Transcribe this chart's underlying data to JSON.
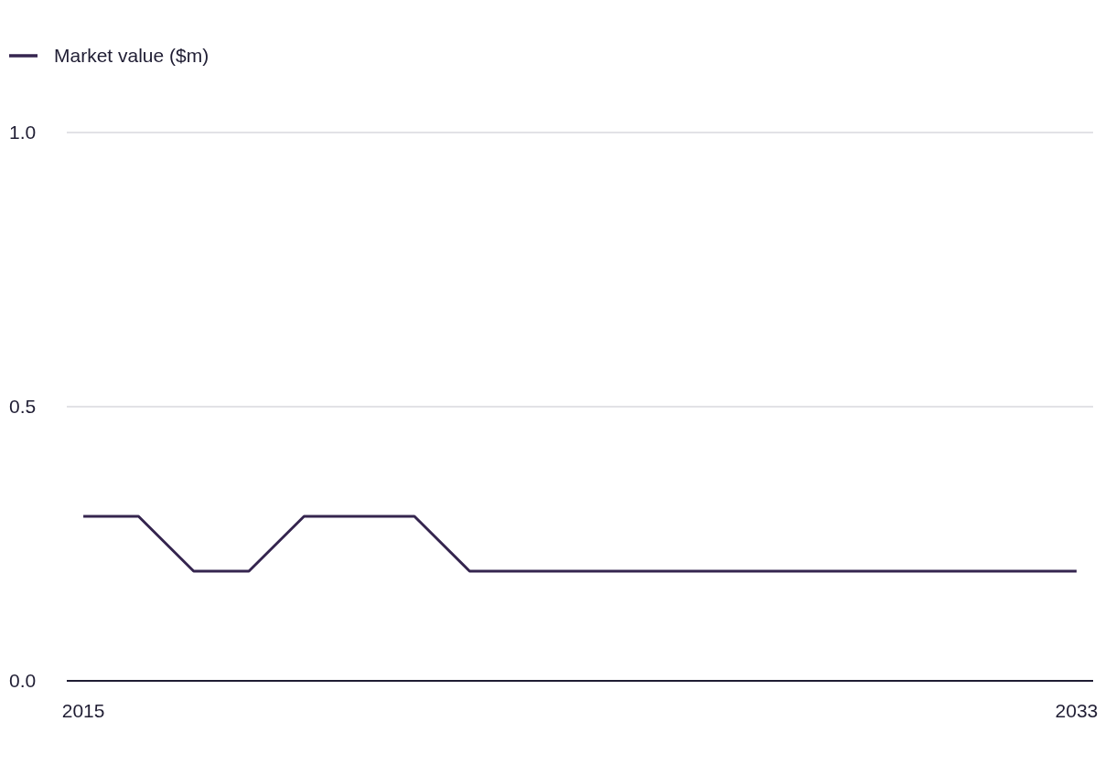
{
  "chart_data": {
    "type": "line",
    "x": [
      2015,
      2016,
      2017,
      2018,
      2019,
      2020,
      2021,
      2022,
      2023,
      2024,
      2025,
      2026,
      2027,
      2028,
      2029,
      2030,
      2031,
      2032,
      2033
    ],
    "series": [
      {
        "name": "Market value ($m)",
        "color": "#35254f",
        "values": [
          0.3,
          0.3,
          0.2,
          0.2,
          0.3,
          0.3,
          0.3,
          0.2,
          0.2,
          0.2,
          0.2,
          0.2,
          0.2,
          0.2,
          0.2,
          0.2,
          0.2,
          0.2,
          0.2
        ]
      }
    ],
    "xlim": [
      2014.7,
      2033.3
    ],
    "xticks": [
      2015,
      2033
    ],
    "ylim": [
      0,
      1
    ],
    "yticks": [
      {
        "value": 0,
        "label": "0.0"
      },
      {
        "value": 0.5,
        "label": "0.5"
      },
      {
        "value": 1,
        "label": "1.0"
      }
    ],
    "grid": "y",
    "legend": "top left",
    "marker": "none",
    "line_style": "solid"
  }
}
